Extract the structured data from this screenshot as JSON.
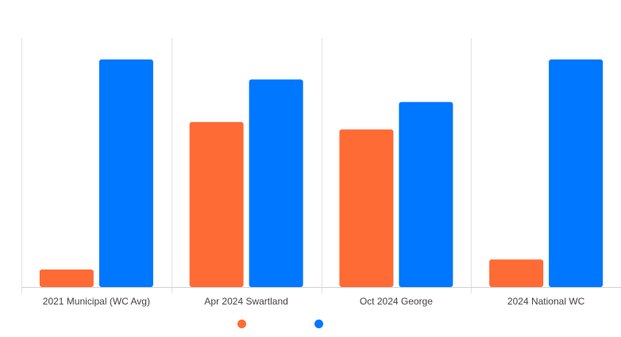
{
  "chart_data": {
    "type": "bar",
    "title": "",
    "xlabel": "",
    "ylabel": "",
    "categories": [
      "2021 Municipal (WC Avg)",
      "Apr 2024 Swartland",
      "Oct 2024 George",
      "2024 National WC"
    ],
    "series": [
      {
        "values": [
          7,
          66,
          63,
          11
        ],
        "color": "#ff6b35"
      },
      {
        "values": [
          91,
          83,
          74,
          91
        ],
        "color": "#0077ff"
      }
    ],
    "ylim": [
      0,
      100
    ],
    "grid": "vertical category separators",
    "legend": "bottom-center",
    "y_tick_labels_shown": false
  }
}
